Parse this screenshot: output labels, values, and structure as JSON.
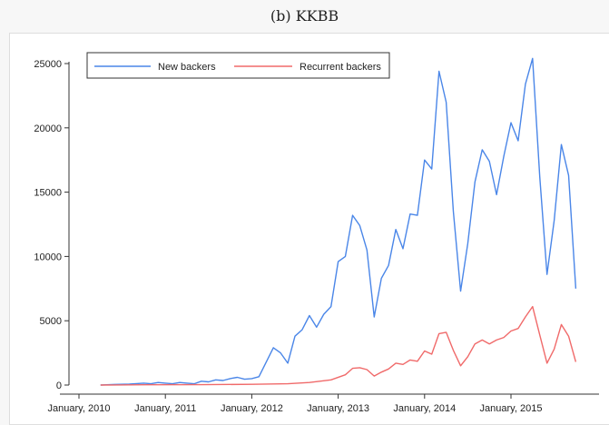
{
  "figure": {
    "caption": "(b) KKBB"
  },
  "chart_data": {
    "type": "line",
    "title": "",
    "xlabel": "",
    "ylabel": "",
    "ylim": [
      0,
      25000
    ],
    "yticks": [
      0,
      5000,
      10000,
      15000,
      20000,
      25000
    ],
    "xticks": [
      {
        "label": "January, 2010",
        "date": "2010-01"
      },
      {
        "label": "January, 2011",
        "date": "2011-01"
      },
      {
        "label": "January, 2012",
        "date": "2012-01"
      },
      {
        "label": "January, 2013",
        "date": "2013-01"
      },
      {
        "label": "January, 2014",
        "date": "2014-01"
      },
      {
        "label": "January, 2015",
        "date": "2015-01"
      }
    ],
    "grid": false,
    "legend": {
      "placement": "top-left",
      "boxed": true
    },
    "series": [
      {
        "name": "New backers",
        "color": "#4a86e8",
        "points": [
          [
            "2010-04",
            0
          ],
          [
            "2010-06",
            50
          ],
          [
            "2010-08",
            80
          ],
          [
            "2010-10",
            150
          ],
          [
            "2010-11",
            100
          ],
          [
            "2010-12",
            200
          ],
          [
            "2011-01",
            150
          ],
          [
            "2011-02",
            100
          ],
          [
            "2011-03",
            200
          ],
          [
            "2011-04",
            150
          ],
          [
            "2011-05",
            100
          ],
          [
            "2011-06",
            300
          ],
          [
            "2011-07",
            250
          ],
          [
            "2011-08",
            400
          ],
          [
            "2011-09",
            350
          ],
          [
            "2011-10",
            500
          ],
          [
            "2011-11",
            600
          ],
          [
            "2011-12",
            450
          ],
          [
            "2012-01",
            500
          ],
          [
            "2012-02",
            650
          ],
          [
            "2012-04",
            2900
          ],
          [
            "2012-05",
            2500
          ],
          [
            "2012-06",
            1700
          ],
          [
            "2012-07",
            3800
          ],
          [
            "2012-08",
            4300
          ],
          [
            "2012-09",
            5400
          ],
          [
            "2012-10",
            4500
          ],
          [
            "2012-11",
            5500
          ],
          [
            "2012-12",
            6100
          ],
          [
            "2013-01",
            9600
          ],
          [
            "2013-02",
            10000
          ],
          [
            "2013-03",
            13200
          ],
          [
            "2013-04",
            12400
          ],
          [
            "2013-05",
            10500
          ],
          [
            "2013-06",
            5300
          ],
          [
            "2013-07",
            8300
          ],
          [
            "2013-08",
            9300
          ],
          [
            "2013-09",
            12100
          ],
          [
            "2013-10",
            10600
          ],
          [
            "2013-11",
            13300
          ],
          [
            "2013-12",
            13200
          ],
          [
            "2014-01",
            17500
          ],
          [
            "2014-02",
            16800
          ],
          [
            "2014-03",
            24400
          ],
          [
            "2014-04",
            22000
          ],
          [
            "2014-05",
            13500
          ],
          [
            "2014-06",
            7300
          ],
          [
            "2014-07",
            11000
          ],
          [
            "2014-08",
            15800
          ],
          [
            "2014-09",
            18300
          ],
          [
            "2014-10",
            17400
          ],
          [
            "2014-11",
            14800
          ],
          [
            "2014-12",
            17800
          ],
          [
            "2015-01",
            20400
          ],
          [
            "2015-02",
            19000
          ],
          [
            "2015-03",
            23400
          ],
          [
            "2015-04",
            25400
          ],
          [
            "2015-05",
            16200
          ],
          [
            "2015-06",
            8600
          ],
          [
            "2015-07",
            12800
          ],
          [
            "2015-08",
            18700
          ],
          [
            "2015-09",
            16300
          ],
          [
            "2015-10",
            7500
          ]
        ]
      },
      {
        "name": "Recurrent backers",
        "color": "#f06a6a",
        "points": [
          [
            "2010-04",
            0
          ],
          [
            "2010-10",
            20
          ],
          [
            "2011-06",
            30
          ],
          [
            "2012-01",
            60
          ],
          [
            "2012-06",
            100
          ],
          [
            "2012-09",
            200
          ],
          [
            "2012-12",
            400
          ],
          [
            "2013-02",
            800
          ],
          [
            "2013-03",
            1300
          ],
          [
            "2013-04",
            1350
          ],
          [
            "2013-05",
            1200
          ],
          [
            "2013-06",
            700
          ],
          [
            "2013-07",
            1000
          ],
          [
            "2013-08",
            1250
          ],
          [
            "2013-09",
            1700
          ],
          [
            "2013-10",
            1600
          ],
          [
            "2013-11",
            1950
          ],
          [
            "2013-12",
            1850
          ],
          [
            "2014-01",
            2650
          ],
          [
            "2014-02",
            2400
          ],
          [
            "2014-03",
            4000
          ],
          [
            "2014-04",
            4100
          ],
          [
            "2014-05",
            2700
          ],
          [
            "2014-06",
            1500
          ],
          [
            "2014-07",
            2200
          ],
          [
            "2014-08",
            3200
          ],
          [
            "2014-09",
            3500
          ],
          [
            "2014-10",
            3200
          ],
          [
            "2014-11",
            3500
          ],
          [
            "2014-12",
            3700
          ],
          [
            "2015-01",
            4200
          ],
          [
            "2015-02",
            4400
          ],
          [
            "2015-03",
            5300
          ],
          [
            "2015-04",
            6100
          ],
          [
            "2015-05",
            3900
          ],
          [
            "2015-06",
            1700
          ],
          [
            "2015-07",
            2800
          ],
          [
            "2015-08",
            4700
          ],
          [
            "2015-09",
            3800
          ],
          [
            "2015-10",
            1800
          ]
        ]
      }
    ]
  }
}
